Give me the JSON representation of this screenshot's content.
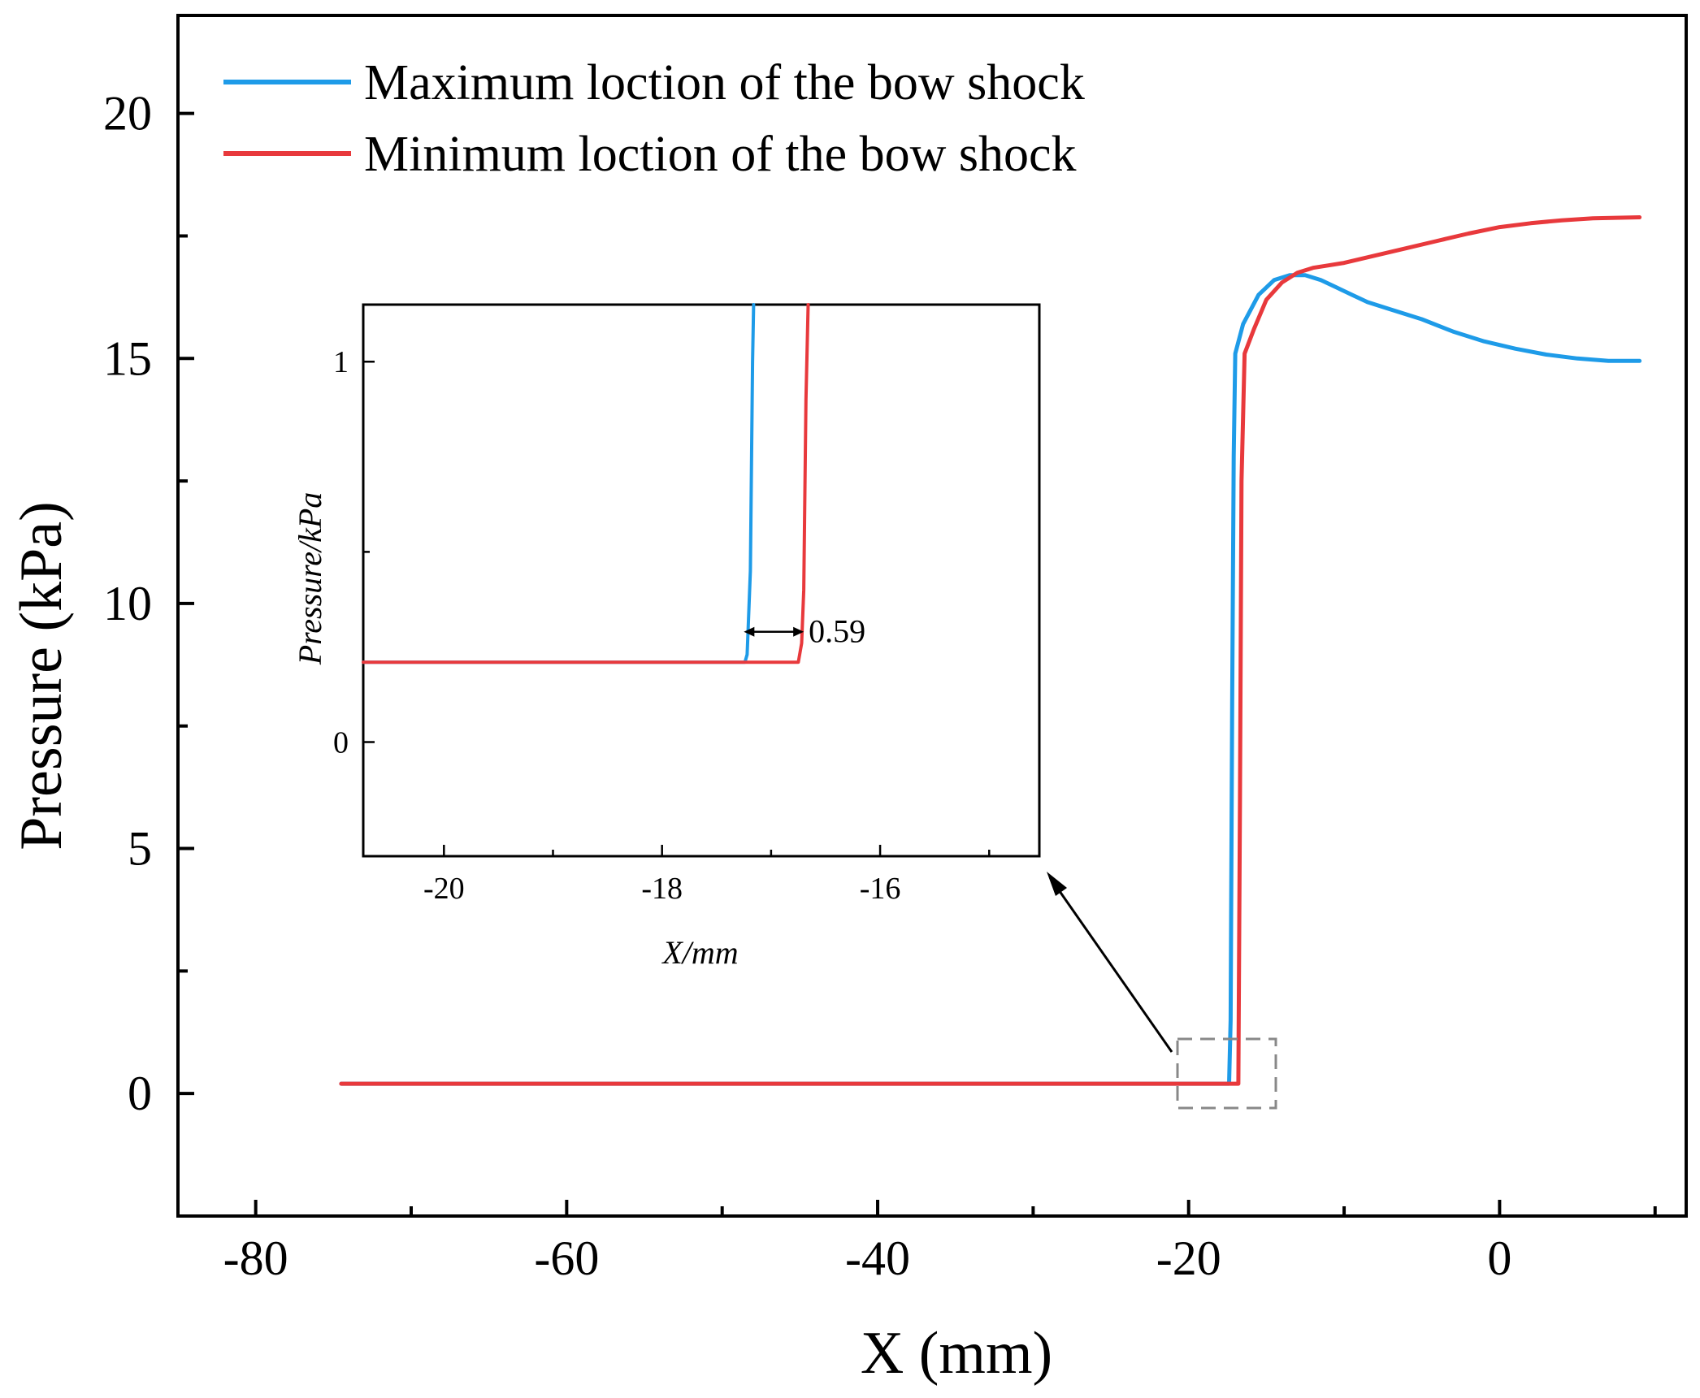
{
  "chart_data": [
    {
      "id": "main",
      "type": "line",
      "title": "",
      "xlabel": "X (mm)",
      "ylabel": "Pressure (kPa)",
      "xlim": [
        -85,
        12
      ],
      "ylim": [
        -2.5,
        22
      ],
      "xticks": [
        -80,
        -60,
        -40,
        -20,
        0
      ],
      "xtick_labels": [
        "-80",
        "-60",
        "-40",
        "-20",
        "0"
      ],
      "xminor": [
        -70,
        -50,
        -30,
        -10,
        10
      ],
      "yticks": [
        0,
        5,
        10,
        15,
        20
      ],
      "ytick_labels": [
        "0",
        "5",
        "10",
        "15",
        "20"
      ],
      "yminor": [
        2.5,
        7.5,
        12.5,
        17.5
      ],
      "grid": false,
      "legend_position": "top-left",
      "series": [
        {
          "name": "Maximum loction of the bow shock",
          "color": "#1e9be8",
          "x": [
            -74.5,
            -17.4,
            -17.3,
            -17.2,
            -17.1,
            -17.0,
            -16.5,
            -15.5,
            -14.5,
            -13.5,
            -12.5,
            -11.5,
            -10.5,
            -9.5,
            -8.5,
            -7.0,
            -5.0,
            -3.0,
            -1.0,
            1.0,
            3.0,
            5.0,
            7.0,
            9.0
          ],
          "y": [
            0.2,
            0.2,
            1.5,
            8.0,
            13.0,
            15.1,
            15.7,
            16.3,
            16.6,
            16.7,
            16.7,
            16.6,
            16.45,
            16.3,
            16.15,
            16.0,
            15.8,
            15.55,
            15.35,
            15.2,
            15.08,
            15.0,
            14.95,
            14.95
          ]
        },
        {
          "name": "Minimum loction of the bow shock",
          "color": "#e8393c",
          "x": [
            -74.5,
            -16.8,
            -16.7,
            -16.6,
            -16.4,
            -15.8,
            -15.0,
            -14.0,
            -13.0,
            -12.0,
            -11.0,
            -10.0,
            -8.0,
            -6.0,
            -4.0,
            -2.0,
            0.0,
            2.0,
            4.0,
            6.0,
            9.0
          ],
          "y": [
            0.2,
            0.2,
            6.0,
            12.5,
            15.1,
            15.6,
            16.2,
            16.55,
            16.75,
            16.85,
            16.9,
            16.95,
            17.1,
            17.25,
            17.4,
            17.55,
            17.68,
            17.76,
            17.82,
            17.86,
            17.88
          ]
        }
      ]
    },
    {
      "id": "inset",
      "type": "line",
      "title": "",
      "xlabel": "X/mm",
      "ylabel": "Pressure/kPa",
      "xlim": [
        -20.74,
        -14.54
      ],
      "ylim": [
        -0.3,
        1.15
      ],
      "xticks": [
        -20,
        -18,
        -16
      ],
      "xtick_labels": [
        "-20",
        "-18",
        "-16"
      ],
      "xminor": [
        -19,
        -17,
        -15
      ],
      "yticks": [
        0,
        1
      ],
      "ytick_labels": [
        "0",
        "1"
      ],
      "yminor": [
        0.5
      ],
      "grid": false,
      "annotation": "0.59",
      "annotation_span": [
        -17.25,
        -16.7
      ],
      "annotation_y": 0.29,
      "series": [
        {
          "name": "Maximum loction of the bow shock",
          "color": "#1e9be8",
          "x": [
            -20.74,
            -17.24,
            -17.22,
            -17.21,
            -17.19,
            -17.17,
            -17.16
          ],
          "y": [
            0.21,
            0.21,
            0.23,
            0.3,
            0.45,
            1.0,
            1.15
          ]
        },
        {
          "name": "Minimum loction of the bow shock",
          "color": "#e8393c",
          "x": [
            -20.74,
            -16.75,
            -16.72,
            -16.7,
            -16.68,
            -16.66
          ],
          "y": [
            0.21,
            0.21,
            0.26,
            0.4,
            0.9,
            1.15
          ]
        }
      ]
    }
  ]
}
